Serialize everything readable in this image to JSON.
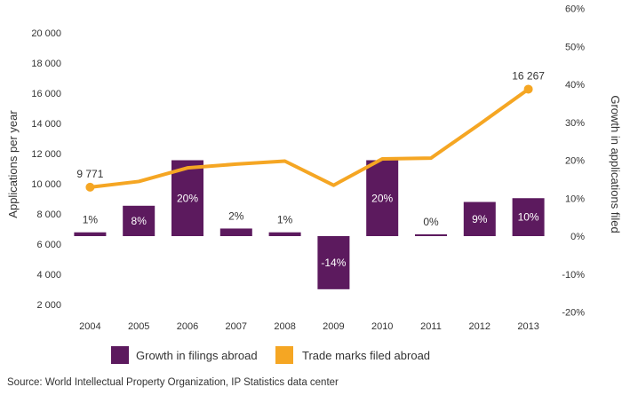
{
  "chart_data": {
    "type": "bar+line",
    "categories": [
      "2004",
      "2005",
      "2006",
      "2007",
      "2008",
      "2009",
      "2010",
      "2011",
      "2012",
      "2013"
    ],
    "series": [
      {
        "name": "Growth in filings abroad",
        "type": "bar",
        "axis": "right",
        "color": "#5c1a5e",
        "values": [
          1,
          8,
          20,
          2,
          1,
          -14,
          20,
          0,
          9,
          10
        ],
        "labels": [
          "1%",
          "8%",
          "20%",
          "2%",
          "1%",
          "-14%",
          "20%",
          "0%",
          "9%",
          "10%"
        ]
      },
      {
        "name": "Trade marks filed abroad",
        "type": "line",
        "axis": "left",
        "color": "#f5a623",
        "values": [
          9771,
          10150,
          11050,
          11300,
          11500,
          9900,
          11650,
          11700,
          13950,
          16267
        ],
        "point_labels": [
          {
            "index": 0,
            "text": "9 771"
          },
          {
            "index": 9,
            "text": "16 267"
          }
        ]
      }
    ],
    "y_left": {
      "label": "Applications per year",
      "ylim": [
        2000,
        22000
      ],
      "ticks": [
        2000,
        4000,
        6000,
        8000,
        10000,
        12000,
        14000,
        16000,
        18000,
        20000
      ],
      "tick_labels": [
        "2 000",
        "4 000",
        "6 000",
        "8 000",
        "10 000",
        "12 000",
        "14 000",
        "16 000",
        "18 000",
        "20 000"
      ]
    },
    "y_right": {
      "label": "Growth in applications filed",
      "ylim": [
        -20,
        60
      ],
      "ticks": [
        -20,
        -10,
        0,
        10,
        20,
        30,
        40,
        50,
        60
      ],
      "tick_labels": [
        "-20%",
        "-10%",
        "0%",
        "10%",
        "20%",
        "30%",
        "40%",
        "50%",
        "60%"
      ]
    },
    "grid": false,
    "legend": "bottom"
  },
  "legend": {
    "items": [
      {
        "label": "Growth in filings abroad",
        "color": "#5c1a5e"
      },
      {
        "label": "Trade marks filed abroad",
        "color": "#f5a623"
      }
    ]
  },
  "source": "Source: World Intellectual Property Organization, IP Statistics data center"
}
